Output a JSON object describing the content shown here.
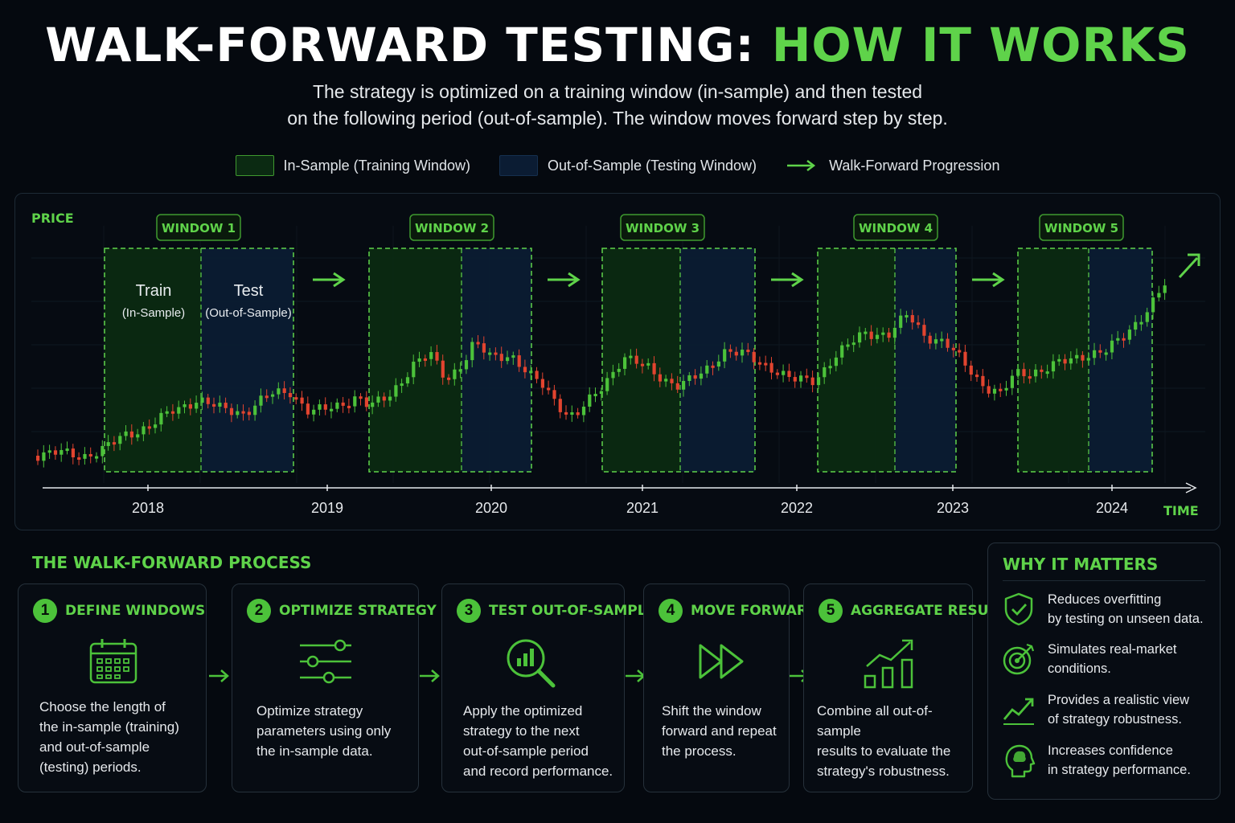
{
  "header": {
    "title_main": "WALK-FORWARD TESTING: ",
    "title_accent": "HOW IT WORKS",
    "subtitle_line1": "The strategy is optimized on a training window (in-sample) and then tested",
    "subtitle_line2": "on the following period (out-of-sample). The window moves forward step by step."
  },
  "legend": {
    "in_sample": "In-Sample (Training Window)",
    "out_sample": "Out-of-Sample (Testing Window)",
    "progression": "Walk-Forward Progression"
  },
  "chart": {
    "y_label": "PRICE",
    "x_label": "TIME",
    "years": [
      "2018",
      "2019",
      "2020",
      "2021",
      "2022",
      "2023",
      "2024"
    ],
    "windows": [
      {
        "label": "WINDOW 1"
      },
      {
        "label": "WINDOW 2"
      },
      {
        "label": "WINDOW 3"
      },
      {
        "label": "WINDOW 4"
      },
      {
        "label": "WINDOW 5"
      }
    ],
    "train_label": "Train",
    "train_sub": "(In-Sample)",
    "test_label": "Test",
    "test_sub": "(Out-of-Sample)",
    "colors": {
      "up": "#4cc23a",
      "down": "#e2442f",
      "in_sample": "#0b2a12",
      "out_sample": "#0b1c33",
      "accent": "#5fd34a"
    }
  },
  "process": {
    "title": "THE WALK-FORWARD PROCESS",
    "steps": [
      {
        "num": "1",
        "label": "DEFINE WINDOWS",
        "icon": "calendar-icon",
        "desc": [
          "Choose the length of",
          "the in-sample (training)",
          "and out-of-sample",
          "(testing) periods."
        ]
      },
      {
        "num": "2",
        "label": "OPTIMIZE STRATEGY",
        "icon": "sliders-icon",
        "desc": [
          "Optimize strategy",
          "parameters using only",
          "the in-sample data."
        ]
      },
      {
        "num": "3",
        "label": "TEST OUT-OF-SAMPLE",
        "icon": "magnifier-chart-icon",
        "desc": [
          "Apply the optimized",
          "strategy to the next",
          "out-of-sample period",
          "and record performance."
        ]
      },
      {
        "num": "4",
        "label": "MOVE FORWARD",
        "icon": "fast-forward-icon",
        "desc": [
          "Shift the window",
          "forward and repeat",
          "the process."
        ]
      },
      {
        "num": "5",
        "label": "AGGREGATE RESULTS",
        "icon": "growth-bars-icon",
        "desc": [
          "Combine all out-of-sample",
          "results to evaluate the",
          "strategy's robustness."
        ]
      }
    ]
  },
  "why": {
    "title": "WHY IT MATTERS",
    "items": [
      {
        "icon": "shield-check-icon",
        "line1": "Reduces overfitting",
        "line2": "by testing on unseen data."
      },
      {
        "icon": "target-icon",
        "line1": "Simulates real-market",
        "line2": "conditions."
      },
      {
        "icon": "trend-up-icon",
        "line1": "Provides a realistic view",
        "line2": "of strategy robustness."
      },
      {
        "icon": "head-brain-icon",
        "line1": "Increases confidence",
        "line2": "in strategy performance."
      }
    ]
  }
}
